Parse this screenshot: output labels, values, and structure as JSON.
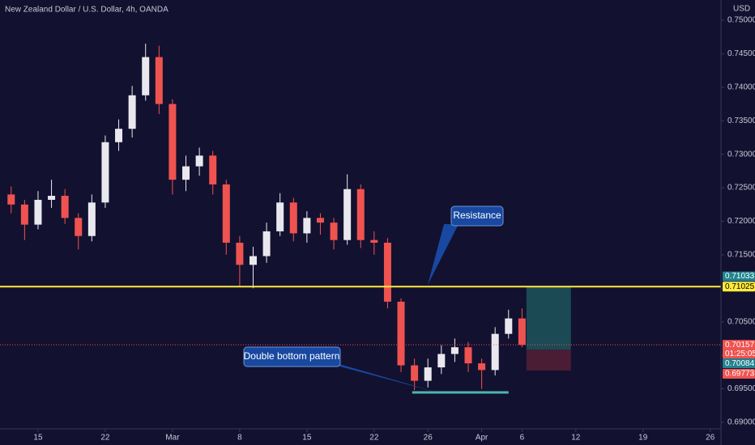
{
  "chart_data": {
    "type": "candlestick",
    "title": "New Zealand Dollar / U.S. Dollar, 4h, OANDA",
    "unit": "USD",
    "x": [
      -2,
      -1,
      0,
      1,
      2,
      3,
      4,
      5,
      6,
      7,
      8,
      9,
      10,
      11,
      12,
      13,
      14,
      15,
      16,
      17,
      18,
      19,
      20,
      21,
      22,
      23,
      24,
      25,
      26,
      27,
      28,
      29,
      30,
      31,
      32,
      33,
      34,
      35,
      36
    ],
    "open": [
      0.724,
      0.7225,
      0.7195,
      0.7232,
      0.7238,
      0.7205,
      0.7178,
      0.7228,
      0.7318,
      0.7338,
      0.7388,
      0.7445,
      0.7375,
      0.7262,
      0.7282,
      0.7298,
      0.7255,
      0.7168,
      0.7135,
      0.7148,
      0.7185,
      0.7228,
      0.7182,
      0.7205,
      0.7198,
      0.7172,
      0.7248,
      0.7172,
      0.7168,
      0.708,
      0.6985,
      0.6962,
      0.6982,
      0.7002,
      0.7012,
      0.6988,
      0.6978,
      0.7032,
      0.7055
    ],
    "high": [
      0.7252,
      0.7232,
      0.7245,
      0.7262,
      0.7248,
      0.7212,
      0.724,
      0.7328,
      0.7352,
      0.7402,
      0.7465,
      0.7462,
      0.7382,
      0.7298,
      0.731,
      0.7305,
      0.7262,
      0.7178,
      0.7162,
      0.7198,
      0.7242,
      0.7235,
      0.7215,
      0.7212,
      0.7205,
      0.727,
      0.7255,
      0.7185,
      0.7175,
      0.7085,
      0.6995,
      0.6995,
      0.7015,
      0.7025,
      0.702,
      0.6995,
      0.7042,
      0.7068,
      0.707
    ],
    "low": [
      0.7212,
      0.7172,
      0.7188,
      0.722,
      0.7196,
      0.7158,
      0.717,
      0.722,
      0.7305,
      0.7325,
      0.738,
      0.736,
      0.724,
      0.7245,
      0.7268,
      0.724,
      0.715,
      0.7102,
      0.71,
      0.7138,
      0.7178,
      0.717,
      0.7168,
      0.718,
      0.7158,
      0.7165,
      0.716,
      0.715,
      0.707,
      0.6975,
      0.6948,
      0.6952,
      0.6972,
      0.699,
      0.6975,
      0.695,
      0.697,
      0.7025,
      0.7012
    ],
    "close": [
      0.7225,
      0.7195,
      0.7232,
      0.7238,
      0.7205,
      0.7178,
      0.7228,
      0.7318,
      0.7338,
      0.7388,
      0.7445,
      0.7375,
      0.7262,
      0.7282,
      0.7298,
      0.7255,
      0.7168,
      0.7135,
      0.7148,
      0.7185,
      0.7228,
      0.7182,
      0.7205,
      0.7198,
      0.7172,
      0.7248,
      0.7172,
      0.7168,
      0.708,
      0.6985,
      0.6962,
      0.6982,
      0.7002,
      0.7012,
      0.6988,
      0.6978,
      0.7032,
      0.7055,
      0.70157
    ],
    "up_color": "#e8e8ee",
    "down_color": "#ef5350",
    "xlim": [
      -2.83,
      50.8
    ],
    "xticks": [
      {
        "value": 0,
        "label": "15"
      },
      {
        "value": 5,
        "label": "22"
      },
      {
        "value": 10,
        "label": "Mar"
      },
      {
        "value": 15,
        "label": "8"
      },
      {
        "value": 20,
        "label": "15"
      },
      {
        "value": 25,
        "label": "22"
      },
      {
        "value": 29,
        "label": "26"
      },
      {
        "value": 33,
        "label": "Apr"
      },
      {
        "value": 36,
        "label": "6"
      },
      {
        "value": 40,
        "label": "12"
      },
      {
        "value": 45,
        "label": "19"
      },
      {
        "value": 50,
        "label": "26"
      }
    ],
    "ylim": [
      0.68903,
      0.75302
    ],
    "yticks": [
      {
        "value": 0.69,
        "label": "0.69000"
      },
      {
        "value": 0.695,
        "label": "0.69500"
      },
      {
        "value": 0.7,
        "label": "0.70000"
      },
      {
        "value": 0.705,
        "label": "0.70500"
      },
      {
        "value": 0.71,
        "label": "0.71000"
      },
      {
        "value": 0.715,
        "label": "0.71500"
      },
      {
        "value": 0.72,
        "label": "0.72000"
      },
      {
        "value": 0.725,
        "label": "0.72500"
      },
      {
        "value": 0.73,
        "label": "0.73000"
      },
      {
        "value": 0.735,
        "label": "0.73500"
      },
      {
        "value": 0.74,
        "label": "0.74000"
      },
      {
        "value": 0.745,
        "label": "0.74500"
      },
      {
        "value": 0.75,
        "label": "0.75000"
      }
    ],
    "resistance": {
      "value": 0.71025,
      "color": "#ffeb3b"
    },
    "last_price": {
      "value": 0.70157,
      "countdown": "01:25:05",
      "color": "#ef5350"
    },
    "position": {
      "x_start": 36.33,
      "x_end": 39.64,
      "entry": 0.70084,
      "target": 0.71033,
      "stop": 0.69773,
      "profit_color": "#1b4a55",
      "loss_color": "#4a1d35",
      "entry_color": "#22838f"
    },
    "support": {
      "x_start": 27.83,
      "x_end": 35.0,
      "value": 0.69447,
      "color": "#4db6ac"
    },
    "annotations": [
      "Resistance",
      "Double bottom pattern"
    ]
  }
}
